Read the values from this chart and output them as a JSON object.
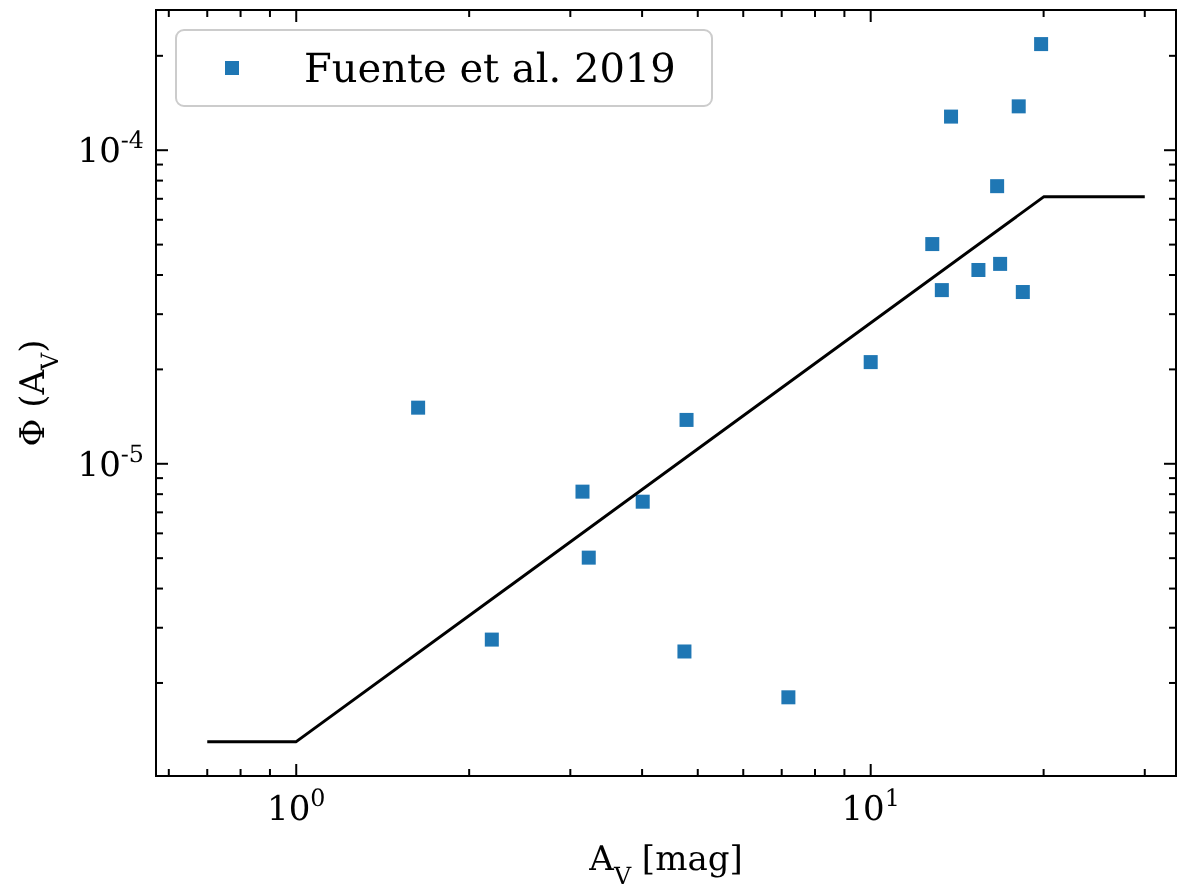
{
  "chart_data": {
    "type": "scatter",
    "xlabel": "A$_{V}$ [mag]",
    "ylabel": "Φ (A$_{V}$)",
    "log": "xy",
    "legend": "top left",
    "grid": false,
    "xlim": [
      0.57,
      34
    ],
    "ylim": [
      1.01e-06,
      0.00028
    ],
    "xticks": [
      {
        "value": 0.6,
        "label": null
      },
      {
        "value": 0.7,
        "label": null
      },
      {
        "value": 0.8,
        "label": null
      },
      {
        "value": 0.9,
        "label": null
      },
      {
        "value": 1,
        "label": "10$^{0}$"
      },
      {
        "value": 2,
        "label": null
      },
      {
        "value": 3,
        "label": null
      },
      {
        "value": 4,
        "label": null
      },
      {
        "value": 5,
        "label": null
      },
      {
        "value": 6,
        "label": null
      },
      {
        "value": 7,
        "label": null
      },
      {
        "value": 8,
        "label": null
      },
      {
        "value": 9,
        "label": null
      },
      {
        "value": 10,
        "label": "10$^{1}$"
      },
      {
        "value": 20,
        "label": null
      },
      {
        "value": 30,
        "label": null
      }
    ],
    "yticks": [
      {
        "value": 2e-06,
        "label": null
      },
      {
        "value": 3e-06,
        "label": null
      },
      {
        "value": 4e-06,
        "label": null
      },
      {
        "value": 5e-06,
        "label": null
      },
      {
        "value": 6e-06,
        "label": null
      },
      {
        "value": 7e-06,
        "label": null
      },
      {
        "value": 8e-06,
        "label": null
      },
      {
        "value": 9e-06,
        "label": null
      },
      {
        "value": 1e-05,
        "label": "10$^{-5}$"
      },
      {
        "value": 2e-05,
        "label": null
      },
      {
        "value": 3e-05,
        "label": null
      },
      {
        "value": 4e-05,
        "label": null
      },
      {
        "value": 5e-05,
        "label": null
      },
      {
        "value": 6e-05,
        "label": null
      },
      {
        "value": 7e-05,
        "label": null
      },
      {
        "value": 8e-05,
        "label": null
      },
      {
        "value": 9e-05,
        "label": null
      },
      {
        "value": 0.0001,
        "label": "10$^{-4}$"
      },
      {
        "value": 0.0002,
        "label": null
      }
    ],
    "series": [
      {
        "name": "Fuente et al. 2019",
        "marker": "square",
        "color": "#1f77b4",
        "x": [
          1.63,
          2.19,
          3.15,
          3.23,
          4.01,
          4.78,
          4.74,
          7.19,
          10,
          12.8,
          13.8,
          13.3,
          15.4,
          16.6,
          16.8,
          18.1,
          18.4,
          19.8
        ],
        "values": [
          1.51e-05,
          2.75e-06,
          8.15e-06,
          5.02e-06,
          7.57e-06,
          1.38e-05,
          2.52e-06,
          1.8e-06,
          2.11e-05,
          5.02e-05,
          0.000128,
          3.58e-05,
          4.15e-05,
          7.68e-05,
          4.34e-05,
          0.000138,
          3.53e-05,
          0.000218
        ]
      },
      {
        "type": "line",
        "marker": "none",
        "line_style": "solid",
        "color": "#000000",
        "x": [
          0.7,
          1,
          20,
          30
        ],
        "values": [
          1.3e-06,
          1.3e-06,
          7.1e-05,
          7.1e-05
        ]
      }
    ]
  }
}
